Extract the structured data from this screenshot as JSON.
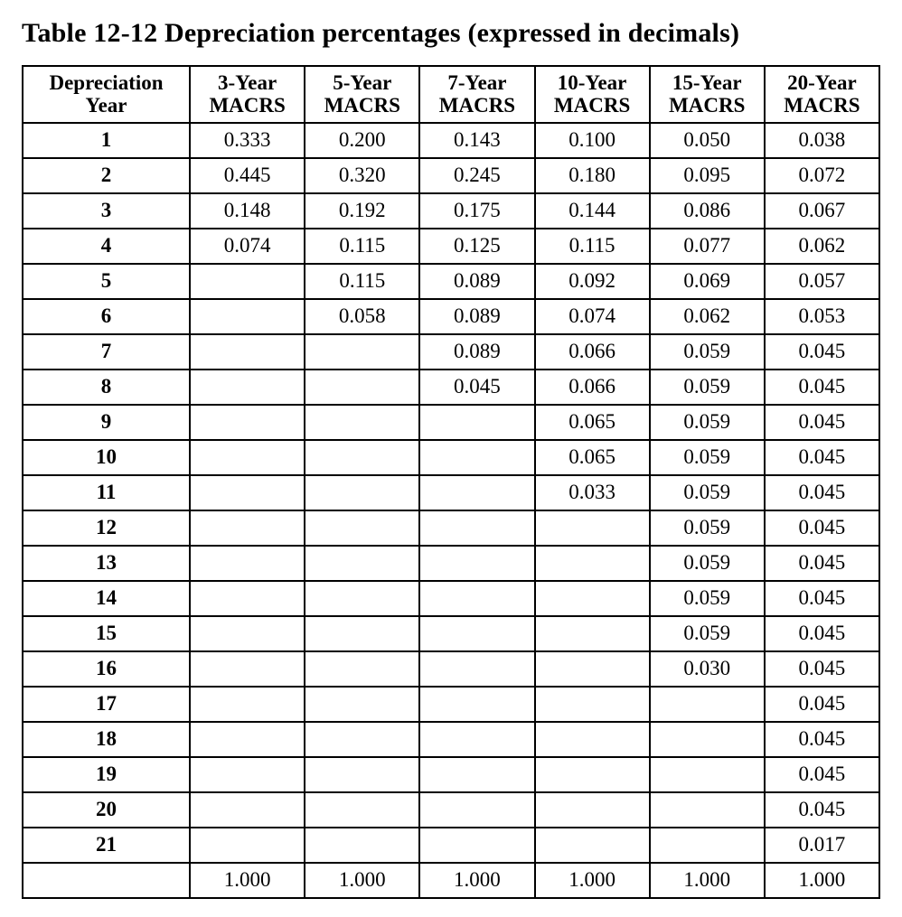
{
  "title": "Table 12-12 Depreciation percentages (expressed in decimals)",
  "table": {
    "type": "table",
    "columns": 7,
    "col_widths_pct": [
      19.5,
      13.4,
      13.4,
      13.4,
      13.4,
      13.4,
      13.4
    ],
    "border_color": "#000000",
    "background_color": "#ffffff",
    "text_color": "#000000",
    "font_family": "Times New Roman",
    "header_fontsize": 23,
    "cell_fontsize": 23,
    "header": {
      "col0_line1": "Depreciation",
      "col0_line2": "Year",
      "cols": [
        {
          "line1": "3-Year",
          "line2": "MACRS"
        },
        {
          "line1": "5-Year",
          "line2": "MACRS"
        },
        {
          "line1": "7-Year",
          "line2": "MACRS"
        },
        {
          "line1": "10-Year",
          "line2": "MACRS"
        },
        {
          "line1": "15-Year",
          "line2": "MACRS"
        },
        {
          "line1": "20-Year",
          "line2": "MACRS"
        }
      ]
    },
    "rows": [
      {
        "year": "1",
        "v": [
          "0.333",
          "0.200",
          "0.143",
          "0.100",
          "0.050",
          "0.038"
        ]
      },
      {
        "year": "2",
        "v": [
          "0.445",
          "0.320",
          "0.245",
          "0.180",
          "0.095",
          "0.072"
        ]
      },
      {
        "year": "3",
        "v": [
          "0.148",
          "0.192",
          "0.175",
          "0.144",
          "0.086",
          "0.067"
        ]
      },
      {
        "year": "4",
        "v": [
          "0.074",
          "0.115",
          "0.125",
          "0.115",
          "0.077",
          "0.062"
        ]
      },
      {
        "year": "5",
        "v": [
          "",
          "0.115",
          "0.089",
          "0.092",
          "0.069",
          "0.057"
        ]
      },
      {
        "year": "6",
        "v": [
          "",
          "0.058",
          "0.089",
          "0.074",
          "0.062",
          "0.053"
        ]
      },
      {
        "year": "7",
        "v": [
          "",
          "",
          "0.089",
          "0.066",
          "0.059",
          "0.045"
        ]
      },
      {
        "year": "8",
        "v": [
          "",
          "",
          "0.045",
          "0.066",
          "0.059",
          "0.045"
        ]
      },
      {
        "year": "9",
        "v": [
          "",
          "",
          "",
          "0.065",
          "0.059",
          "0.045"
        ]
      },
      {
        "year": "10",
        "v": [
          "",
          "",
          "",
          "0.065",
          "0.059",
          "0.045"
        ]
      },
      {
        "year": "11",
        "v": [
          "",
          "",
          "",
          "0.033",
          "0.059",
          "0.045"
        ]
      },
      {
        "year": "12",
        "v": [
          "",
          "",
          "",
          "",
          "0.059",
          "0.045"
        ]
      },
      {
        "year": "13",
        "v": [
          "",
          "",
          "",
          "",
          "0.059",
          "0.045"
        ]
      },
      {
        "year": "14",
        "v": [
          "",
          "",
          "",
          "",
          "0.059",
          "0.045"
        ]
      },
      {
        "year": "15",
        "v": [
          "",
          "",
          "",
          "",
          "0.059",
          "0.045"
        ]
      },
      {
        "year": "16",
        "v": [
          "",
          "",
          "",
          "",
          "0.030",
          "0.045"
        ]
      },
      {
        "year": "17",
        "v": [
          "",
          "",
          "",
          "",
          "",
          "0.045"
        ]
      },
      {
        "year": "18",
        "v": [
          "",
          "",
          "",
          "",
          "",
          "0.045"
        ]
      },
      {
        "year": "19",
        "v": [
          "",
          "",
          "",
          "",
          "",
          "0.045"
        ]
      },
      {
        "year": "20",
        "v": [
          "",
          "",
          "",
          "",
          "",
          "0.045"
        ]
      },
      {
        "year": "21",
        "v": [
          "",
          "",
          "",
          "",
          "",
          "0.017"
        ]
      }
    ],
    "totals_row": {
      "year": "",
      "v": [
        "1.000",
        "1.000",
        "1.000",
        "1.000",
        "1.000",
        "1.000"
      ]
    }
  }
}
